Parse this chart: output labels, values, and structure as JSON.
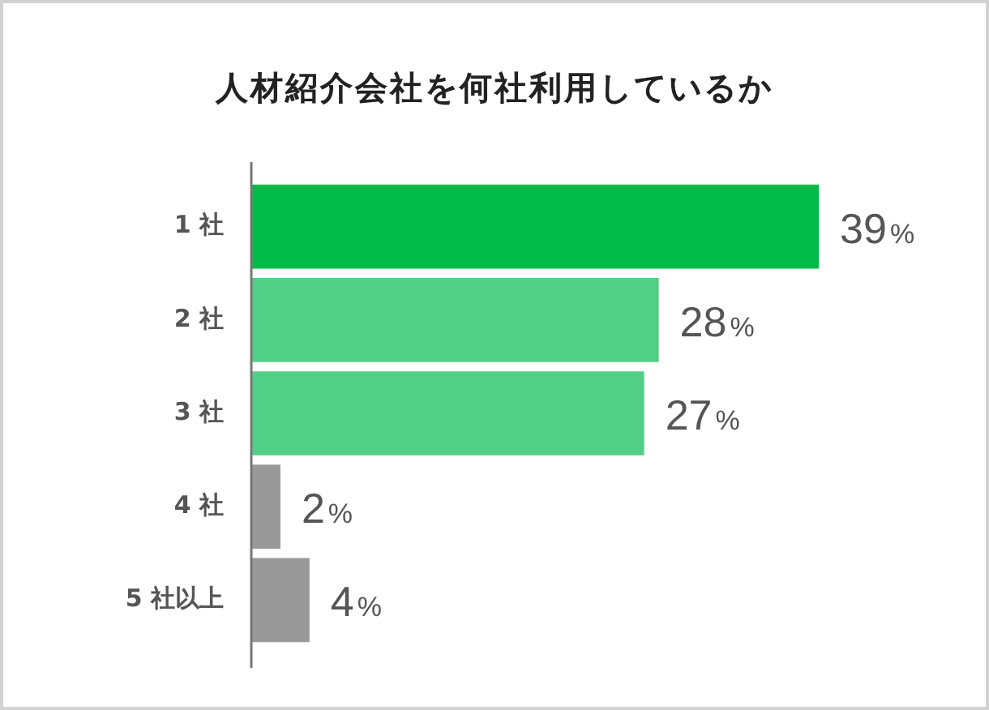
{
  "chart_data": {
    "type": "bar",
    "orientation": "horizontal",
    "title": "人材紹介会社を何社利用しているか",
    "categories": [
      "1 社",
      "2 社",
      "3 社",
      "4 社",
      "5 社以上"
    ],
    "values": [
      39,
      28,
      27,
      2,
      4
    ],
    "colors": [
      "#00bb4a",
      "#52cf86",
      "#52cf86",
      "#999999",
      "#999999"
    ],
    "value_labels": [
      "39%",
      "28%",
      "27%",
      "2%",
      "4%"
    ],
    "tick_labels": "y"
  }
}
